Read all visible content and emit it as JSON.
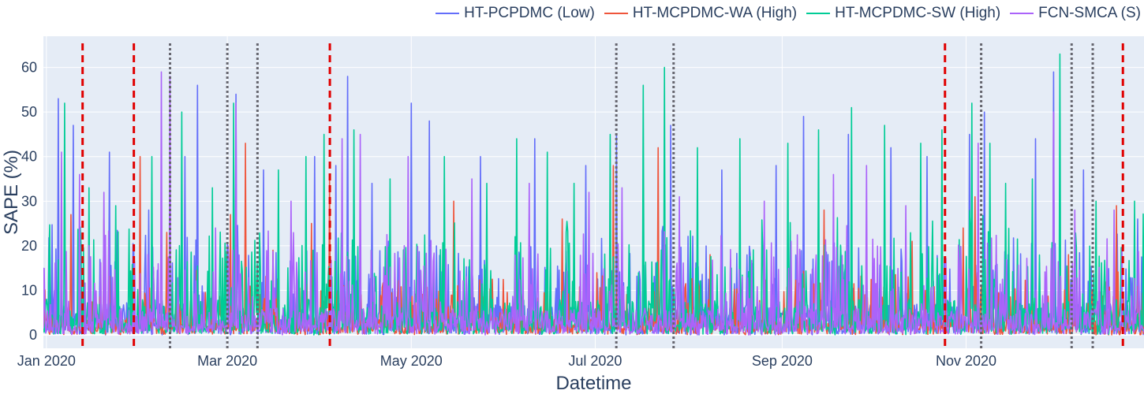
{
  "chart_data": {
    "type": "line",
    "title": "",
    "xlabel": "Datetime",
    "ylabel": "SAPE (%)",
    "x_range": [
      "2019-12-31",
      "2020-12-30"
    ],
    "ylim": [
      -3,
      67
    ],
    "x_ticks": [
      {
        "date": "2020-01-01",
        "label": "Jan 2020"
      },
      {
        "date": "2020-03-01",
        "label": "Mar 2020"
      },
      {
        "date": "2020-05-01",
        "label": "May 2020"
      },
      {
        "date": "2020-07-01",
        "label": "Jul 2020"
      },
      {
        "date": "2020-09-01",
        "label": "Sep 2020"
      },
      {
        "date": "2020-11-01",
        "label": "Nov 2020"
      }
    ],
    "y_ticks": [
      0,
      10,
      20,
      30,
      40,
      50,
      60
    ],
    "grid": true,
    "legend_position": "top-right",
    "series": [
      {
        "name": "HT-PCPDMC (Low)",
        "color": "#636efa",
        "peaks": [
          [
            "2020-01-05",
            53
          ],
          [
            "2020-01-10",
            47
          ],
          [
            "2020-01-22",
            41
          ],
          [
            "2020-02-04",
            28
          ],
          [
            "2020-02-16",
            40
          ],
          [
            "2020-02-20",
            56
          ],
          [
            "2020-03-04",
            54
          ],
          [
            "2020-03-13",
            37
          ],
          [
            "2020-03-30",
            40
          ],
          [
            "2020-04-06",
            38
          ],
          [
            "2020-04-10",
            58
          ],
          [
            "2020-04-18",
            34
          ],
          [
            "2020-05-01",
            52
          ],
          [
            "2020-05-07",
            48
          ],
          [
            "2020-05-24",
            40
          ],
          [
            "2020-06-11",
            44
          ],
          [
            "2020-06-28",
            38
          ],
          [
            "2020-07-08",
            45
          ],
          [
            "2020-07-26",
            47
          ],
          [
            "2020-08-12",
            37
          ],
          [
            "2020-08-30",
            38
          ],
          [
            "2020-09-08",
            49
          ],
          [
            "2020-09-23",
            45
          ],
          [
            "2020-10-07",
            42
          ],
          [
            "2020-10-19",
            40
          ],
          [
            "2020-11-02",
            45
          ],
          [
            "2020-11-07",
            50
          ],
          [
            "2020-11-24",
            44
          ],
          [
            "2020-11-30",
            59
          ],
          [
            "2020-12-10",
            37
          ],
          [
            "2020-12-28",
            26
          ]
        ]
      },
      {
        "name": "HT-MCPDMC-WA (High)",
        "color": "#ef553b",
        "peaks": [
          [
            "2020-01-09",
            27
          ],
          [
            "2020-01-20",
            26
          ],
          [
            "2020-02-01",
            40
          ],
          [
            "2020-02-10",
            23
          ],
          [
            "2020-03-02",
            27
          ],
          [
            "2020-03-07",
            43
          ],
          [
            "2020-03-16",
            19
          ],
          [
            "2020-03-29",
            25
          ],
          [
            "2020-04-04",
            35
          ],
          [
            "2020-05-15",
            30
          ],
          [
            "2020-06-20",
            26
          ],
          [
            "2020-07-07",
            38
          ],
          [
            "2020-07-22",
            42
          ],
          [
            "2020-08-08",
            18
          ],
          [
            "2020-09-15",
            28
          ],
          [
            "2020-10-14",
            21
          ],
          [
            "2020-10-31",
            24
          ],
          [
            "2020-11-04",
            31
          ],
          [
            "2020-12-05",
            18
          ],
          [
            "2020-12-21",
            29
          ]
        ]
      },
      {
        "name": "HT-MCPDMC-SW (High)",
        "color": "#00cc96",
        "peaks": [
          [
            "2020-01-07",
            52
          ],
          [
            "2020-01-15",
            33
          ],
          [
            "2020-01-24",
            29
          ],
          [
            "2020-02-05",
            40
          ],
          [
            "2020-02-15",
            50
          ],
          [
            "2020-02-25",
            33
          ],
          [
            "2020-03-03",
            52
          ],
          [
            "2020-03-18",
            37
          ],
          [
            "2020-03-27",
            40
          ],
          [
            "2020-04-02",
            45
          ],
          [
            "2020-04-12",
            46
          ],
          [
            "2020-04-24",
            35
          ],
          [
            "2020-05-12",
            40
          ],
          [
            "2020-05-26",
            34
          ],
          [
            "2020-06-05",
            44
          ],
          [
            "2020-06-15",
            41
          ],
          [
            "2020-06-24",
            34
          ],
          [
            "2020-07-06",
            45
          ],
          [
            "2020-07-17",
            56
          ],
          [
            "2020-07-24",
            60
          ],
          [
            "2020-08-04",
            42
          ],
          [
            "2020-08-18",
            44
          ],
          [
            "2020-09-03",
            43
          ],
          [
            "2020-09-13",
            46
          ],
          [
            "2020-09-24",
            51
          ],
          [
            "2020-10-05",
            47
          ],
          [
            "2020-10-17",
            43
          ],
          [
            "2020-10-24",
            46
          ],
          [
            "2020-11-03",
            52
          ],
          [
            "2020-11-09",
            43
          ],
          [
            "2020-11-14",
            34
          ],
          [
            "2020-11-23",
            35
          ],
          [
            "2020-12-02",
            63
          ],
          [
            "2020-12-14",
            30
          ],
          [
            "2020-12-27",
            30
          ]
        ]
      },
      {
        "name": "FCN-SMCA (S)",
        "color": "#ab63fa",
        "peaks": [
          [
            "2020-01-06",
            41
          ],
          [
            "2020-01-12",
            36
          ],
          [
            "2020-01-20",
            32
          ],
          [
            "2020-02-08",
            59
          ],
          [
            "2020-02-11",
            58
          ],
          [
            "2020-02-26",
            24
          ],
          [
            "2020-03-04",
            52
          ],
          [
            "2020-03-22",
            30
          ],
          [
            "2020-04-08",
            44
          ],
          [
            "2020-04-14",
            45
          ],
          [
            "2020-04-30",
            40
          ],
          [
            "2020-05-21",
            35
          ],
          [
            "2020-06-09",
            34
          ],
          [
            "2020-06-29",
            32
          ],
          [
            "2020-07-10",
            33
          ],
          [
            "2020-07-29",
            31
          ],
          [
            "2020-08-26",
            30
          ],
          [
            "2020-09-18",
            36
          ],
          [
            "2020-09-29",
            38
          ],
          [
            "2020-10-12",
            29
          ],
          [
            "2020-11-05",
            43
          ],
          [
            "2020-11-30",
            50
          ],
          [
            "2020-12-07",
            28
          ],
          [
            "2020-12-20",
            28
          ]
        ]
      }
    ],
    "vertical_markers": [
      {
        "date": "2020-01-13",
        "style": "dashed",
        "color": "#e00000"
      },
      {
        "date": "2020-01-30",
        "style": "dashed",
        "color": "#e00000"
      },
      {
        "date": "2020-02-11",
        "style": "dotted",
        "color": "#66666f"
      },
      {
        "date": "2020-03-01",
        "style": "dotted",
        "color": "#66666f"
      },
      {
        "date": "2020-03-11",
        "style": "dotted",
        "color": "#66666f"
      },
      {
        "date": "2020-04-04",
        "style": "dashed",
        "color": "#e00000"
      },
      {
        "date": "2020-07-08",
        "style": "dotted",
        "color": "#66666f"
      },
      {
        "date": "2020-07-27",
        "style": "dotted",
        "color": "#66666f"
      },
      {
        "date": "2020-10-25",
        "style": "dashed",
        "color": "#e00000"
      },
      {
        "date": "2020-11-06",
        "style": "dotted",
        "color": "#66666f"
      },
      {
        "date": "2020-12-06",
        "style": "dotted",
        "color": "#66666f"
      },
      {
        "date": "2020-12-13",
        "style": "dotted",
        "color": "#66666f"
      },
      {
        "date": "2020-12-23",
        "style": "dashed",
        "color": "#e00000"
      }
    ]
  }
}
